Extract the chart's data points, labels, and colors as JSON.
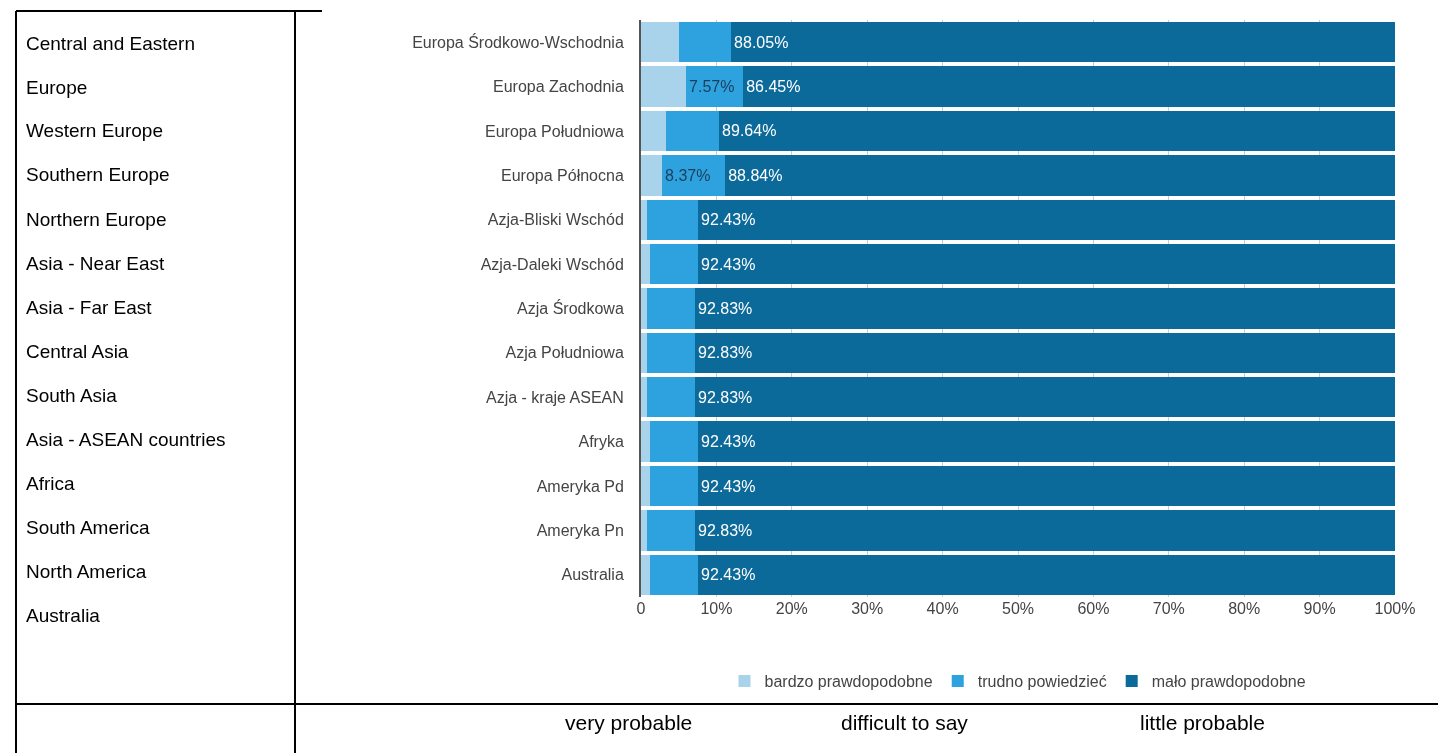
{
  "chart_data": {
    "type": "bar",
    "orientation": "horizontal",
    "stacked": true,
    "categories": [
      "Europa Środkowo-Wschodnia",
      "Europa Zachodnia",
      "Europa Południowa",
      "Europa Północna",
      "Azja-Bliski Wschód",
      "Azja-Daleki Wschód",
      "Azja Środkowa",
      "Azja Południowa",
      "Azja - kraje ASEAN",
      "Afryka",
      "Ameryka Pd",
      "Ameryka Pn",
      "Australia"
    ],
    "series": [
      {
        "name": "bardzo prawdopodobne",
        "color": "#a8d3ea",
        "values": [
          5.0,
          5.98,
          3.3,
          2.79,
          0.8,
          1.2,
          0.8,
          0.8,
          0.8,
          1.2,
          1.2,
          0.8,
          1.2
        ],
        "value_labels": [
          null,
          null,
          null,
          null,
          null,
          null,
          null,
          null,
          null,
          null,
          null,
          null,
          null
        ]
      },
      {
        "name": "trudno powiedzieć",
        "color": "#2ea2df",
        "values": [
          6.95,
          7.57,
          7.06,
          8.37,
          6.77,
          6.37,
          6.37,
          6.37,
          6.37,
          6.37,
          6.37,
          6.37,
          6.37
        ],
        "value_labels": [
          null,
          "7.57%",
          null,
          "8.37%",
          null,
          null,
          null,
          null,
          null,
          null,
          null,
          null,
          null
        ]
      },
      {
        "name": "mało prawdopodobne",
        "color": "#0c6a9a",
        "values": [
          88.05,
          86.45,
          89.64,
          88.84,
          92.43,
          92.43,
          92.83,
          92.83,
          92.83,
          92.43,
          92.43,
          92.83,
          92.43
        ],
        "value_labels": [
          "88.05%",
          "86.45%",
          "89.64%",
          "88.84%",
          "92.43%",
          "92.43%",
          "92.83%",
          "92.83%",
          "92.83%",
          "92.43%",
          "92.43%",
          "92.83%",
          "92.43%"
        ]
      }
    ],
    "xlim": [
      0,
      100
    ],
    "xticks": [
      0,
      {
        "value": 10,
        "label": "10%"
      },
      {
        "value": 20,
        "label": "20%"
      },
      {
        "value": 30,
        "label": "30%"
      },
      {
        "value": 40,
        "label": "40%"
      },
      {
        "value": 50,
        "label": "50%"
      },
      {
        "value": 60,
        "label": "60%"
      },
      {
        "value": 70,
        "label": "70%"
      },
      {
        "value": 80,
        "label": "80%"
      },
      {
        "value": 90,
        "label": "90%"
      },
      {
        "value": 100,
        "label": "100%"
      }
    ],
    "grid": "x",
    "legend": "bottom",
    "annotations": [
      "Central and Eastern Europe",
      "Western Europe",
      "Southern Europe",
      "Northern Europe",
      "Asia - Near East",
      "Asia - Far East",
      "Central Asia",
      "South Asia",
      "Asia - ASEAN countries",
      "Africa",
      "South America",
      "North America",
      "Australia",
      "very probable",
      "difficult to say",
      "little probable"
    ]
  }
}
